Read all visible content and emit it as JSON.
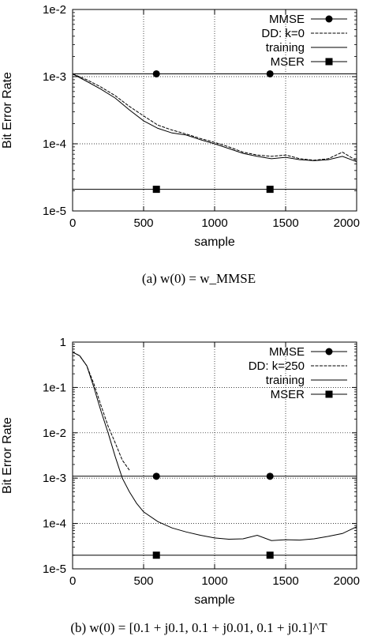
{
  "chart_data": [
    {
      "type": "line",
      "caption": "(a) w(0) = w_MMSE",
      "xlabel": "sample",
      "ylabel": "Bit Error Rate",
      "xlim": [
        0,
        2000
      ],
      "ylim": [
        1e-05,
        0.01
      ],
      "yscale": "log",
      "x_ticks": [
        0,
        500,
        1000,
        1500,
        2000
      ],
      "x_tick_labels": [
        "0",
        "500",
        "1000",
        "1500",
        "2000"
      ],
      "y_ticks": [
        1e-05,
        0.0001,
        0.001,
        0.01
      ],
      "y_tick_labels": [
        "1e-5",
        "1e-4",
        "1e-3",
        "1e-2"
      ],
      "grid": true,
      "legend_position": "top-right",
      "legend": [
        {
          "label": "MMSE",
          "marker": "circle"
        },
        {
          "label": "DD: k=0",
          "marker": "none",
          "dash": "dashed"
        },
        {
          "label": "training",
          "marker": "none",
          "dash": "solid"
        },
        {
          "label": "MSER",
          "marker": "square"
        }
      ],
      "series": [
        {
          "name": "MMSE",
          "x": [
            0,
            2000
          ],
          "y": [
            0.0011,
            0.0011
          ],
          "markers_at": [
            590,
            1390
          ]
        },
        {
          "name": "DD: k=0",
          "x": [
            0,
            100,
            200,
            300,
            400,
            500,
            600,
            700,
            800,
            900,
            1000,
            1100,
            1200,
            1300,
            1400,
            1500,
            1600,
            1700,
            1800,
            1900,
            2000
          ],
          "y": [
            0.0011,
            0.0009,
            0.0007,
            0.00052,
            0.00036,
            0.00026,
            0.00019,
            0.00016,
            0.00014,
            0.00012,
            0.000105,
            9e-05,
            7.5e-05,
            6.8e-05,
            6.5e-05,
            6.8e-05,
            6e-05,
            5.7e-05,
            6e-05,
            7.5e-05,
            5.6e-05
          ]
        },
        {
          "name": "training",
          "x": [
            0,
            100,
            200,
            300,
            400,
            500,
            600,
            700,
            800,
            900,
            1000,
            1100,
            1200,
            1300,
            1400,
            1500,
            1600,
            1700,
            1800,
            1900,
            2000
          ],
          "y": [
            0.0011,
            0.00085,
            0.00065,
            0.00048,
            0.00032,
            0.00022,
            0.00017,
            0.000145,
            0.000135,
            0.000115,
            0.0001,
            8.5e-05,
            7.2e-05,
            6.5e-05,
            6e-05,
            6.3e-05,
            5.8e-05,
            5.6e-05,
            5.8e-05,
            6.5e-05,
            5.4e-05
          ]
        },
        {
          "name": "MSER",
          "x": [
            0,
            2000
          ],
          "y": [
            2.1e-05,
            2.1e-05
          ],
          "markers_at": [
            590,
            1390
          ]
        }
      ]
    },
    {
      "type": "line",
      "caption": "(b) w(0) = [0.1 + j0.1, 0.1 + j0.01, 0.1 + j0.1]^T",
      "xlabel": "sample",
      "ylabel": "Bit Error Rate",
      "xlim": [
        0,
        2000
      ],
      "ylim": [
        1e-05,
        1
      ],
      "yscale": "log",
      "x_ticks": [
        0,
        500,
        1000,
        1500,
        2000
      ],
      "x_tick_labels": [
        "0",
        "500",
        "1000",
        "1500",
        "2000"
      ],
      "y_ticks": [
        1e-05,
        0.0001,
        0.001,
        0.01,
        0.1,
        1
      ],
      "y_tick_labels": [
        "1e-5",
        "1e-4",
        "1e-3",
        "1e-2",
        "1e-1",
        "1"
      ],
      "grid": true,
      "legend_position": "top-right",
      "legend": [
        {
          "label": "MMSE",
          "marker": "circle"
        },
        {
          "label": "DD: k=250",
          "marker": "none",
          "dash": "dashed"
        },
        {
          "label": "training",
          "marker": "none",
          "dash": "solid"
        },
        {
          "label": "MSER",
          "marker": "square"
        }
      ],
      "series": [
        {
          "name": "MMSE",
          "x": [
            0,
            2000
          ],
          "y": [
            0.0011,
            0.0011
          ],
          "markers_at": [
            590,
            1390
          ]
        },
        {
          "name": "DD: k=250",
          "x": [
            0,
            50,
            100,
            150,
            200,
            250,
            300,
            350,
            400
          ],
          "y": [
            0.6,
            0.5,
            0.3,
            0.12,
            0.04,
            0.014,
            0.006,
            0.0025,
            0.0015
          ]
        },
        {
          "name": "training",
          "x": [
            0,
            50,
            100,
            150,
            200,
            250,
            300,
            350,
            400,
            450,
            500,
            600,
            700,
            800,
            900,
            1000,
            1100,
            1200,
            1300,
            1400,
            1500,
            1600,
            1700,
            1800,
            1900,
            2000
          ],
          "y": [
            0.6,
            0.5,
            0.3,
            0.1,
            0.03,
            0.01,
            0.003,
            0.001,
            0.0005,
            0.00028,
            0.00018,
            0.00011,
            8e-05,
            6.5e-05,
            5.5e-05,
            4.8e-05,
            4.5e-05,
            4.6e-05,
            5.5e-05,
            4.2e-05,
            4.4e-05,
            4.3e-05,
            4.6e-05,
            5.2e-05,
            6e-05,
            8.5e-05
          ]
        },
        {
          "name": "MSER",
          "x": [
            0,
            2000
          ],
          "y": [
            2e-05,
            2e-05
          ],
          "markers_at": [
            590,
            1390
          ]
        }
      ]
    }
  ]
}
